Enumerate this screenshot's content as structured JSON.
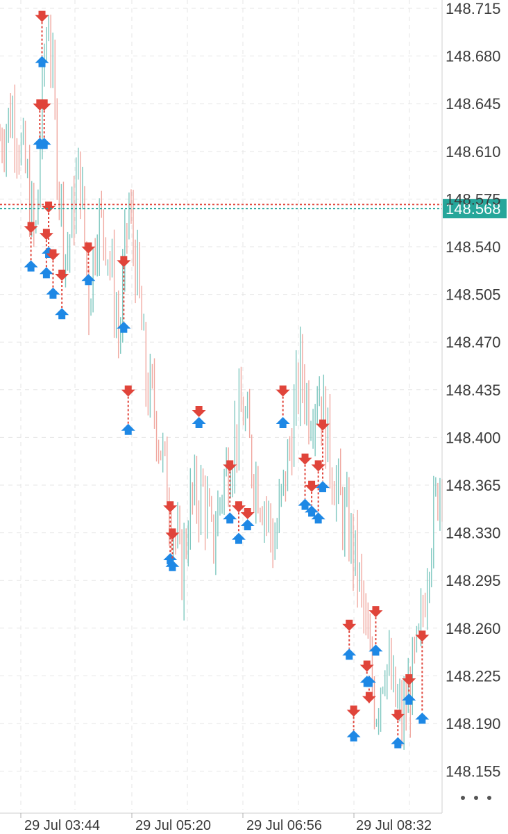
{
  "chart_data": {
    "type": "candlestick",
    "instrument_price_current": "148.568",
    "price_axis": {
      "ticks": [
        "148.715",
        "148.680",
        "148.645",
        "148.610",
        "148.575",
        "148.540",
        "148.505",
        "148.470",
        "148.435",
        "148.400",
        "148.365",
        "148.330",
        "148.295",
        "148.260",
        "148.225",
        "148.190",
        "148.155"
      ],
      "range": [
        148.14,
        148.725
      ]
    },
    "time_axis": {
      "ticks": [
        "29 Jul 03:44",
        "29 Jul 05:20",
        "29 Jul 06:56",
        "29 Jul 08:32"
      ]
    },
    "current_price": {
      "value": 148.568,
      "label": "148.568",
      "color": "#26a69a"
    },
    "previous_price_line": {
      "value": 148.571,
      "color": "#e0443a"
    },
    "colors": {
      "up": "#7fc8c0",
      "down": "#f0a8a0",
      "buy": "#1e88e5",
      "sell": "#e0443a",
      "grid": "#e6e6e6"
    },
    "price_path": [
      [
        0,
        148.62
      ],
      [
        0.03,
        148.64
      ],
      [
        0.06,
        148.59
      ],
      [
        0.08,
        148.54
      ],
      [
        0.1,
        148.68
      ],
      [
        0.11,
        148.71
      ],
      [
        0.13,
        148.6
      ],
      [
        0.15,
        148.53
      ],
      [
        0.18,
        148.6
      ],
      [
        0.2,
        148.5
      ],
      [
        0.22,
        148.56
      ],
      [
        0.24,
        148.55
      ],
      [
        0.26,
        148.5
      ],
      [
        0.27,
        148.47
      ],
      [
        0.29,
        148.57
      ],
      [
        0.31,
        148.52
      ],
      [
        0.33,
        148.44
      ],
      [
        0.35,
        148.42
      ],
      [
        0.38,
        148.36
      ],
      [
        0.41,
        148.3
      ],
      [
        0.43,
        148.35
      ],
      [
        0.46,
        148.36
      ],
      [
        0.48,
        148.32
      ],
      [
        0.5,
        148.36
      ],
      [
        0.53,
        148.4
      ],
      [
        0.55,
        148.42
      ],
      [
        0.57,
        148.38
      ],
      [
        0.6,
        148.35
      ],
      [
        0.62,
        148.32
      ],
      [
        0.65,
        148.38
      ],
      [
        0.68,
        148.45
      ],
      [
        0.7,
        148.42
      ],
      [
        0.72,
        148.44
      ],
      [
        0.75,
        148.38
      ],
      [
        0.77,
        148.35
      ],
      [
        0.79,
        148.33
      ],
      [
        0.81,
        148.3
      ],
      [
        0.83,
        148.25
      ],
      [
        0.85,
        148.2
      ],
      [
        0.87,
        148.24
      ],
      [
        0.89,
        148.21
      ],
      [
        0.91,
        148.19
      ],
      [
        0.93,
        148.22
      ],
      [
        0.95,
        148.25
      ],
      [
        0.97,
        148.32
      ],
      [
        1.0,
        148.38
      ]
    ],
    "trades": [
      {
        "x": 0.09,
        "buy": 148.62,
        "sell": 148.64
      },
      {
        "x": 0.095,
        "buy": 148.68,
        "sell": 148.705
      },
      {
        "x": 0.1,
        "buy": 148.62,
        "sell": 148.64
      },
      {
        "x": 0.07,
        "buy": 148.53,
        "sell": 148.55
      },
      {
        "x": 0.105,
        "buy": 148.525,
        "sell": 148.545
      },
      {
        "x": 0.11,
        "buy": 148.54,
        "sell": 148.565
      },
      {
        "x": 0.12,
        "buy": 148.51,
        "sell": 148.53
      },
      {
        "x": 0.14,
        "buy": 148.495,
        "sell": 148.515
      },
      {
        "x": 0.2,
        "buy": 148.52,
        "sell": 148.535
      },
      {
        "x": 0.28,
        "buy": 148.485,
        "sell": 148.525
      },
      {
        "x": 0.29,
        "buy": 148.41,
        "sell": 148.43
      },
      {
        "x": 0.385,
        "buy": 148.315,
        "sell": 148.345
      },
      {
        "x": 0.39,
        "buy": 148.31,
        "sell": 148.325
      },
      {
        "x": 0.45,
        "buy": 148.415,
        "sell": 148.415
      },
      {
        "x": 0.52,
        "buy": 148.345,
        "sell": 148.375
      },
      {
        "x": 0.54,
        "buy": 148.33,
        "sell": 148.345
      },
      {
        "x": 0.56,
        "buy": 148.34,
        "sell": 148.34
      },
      {
        "x": 0.64,
        "buy": 148.415,
        "sell": 148.43
      },
      {
        "x": 0.69,
        "buy": 148.355,
        "sell": 148.38
      },
      {
        "x": 0.705,
        "buy": 148.35,
        "sell": 148.36
      },
      {
        "x": 0.72,
        "buy": 148.345,
        "sell": 148.375
      },
      {
        "x": 0.73,
        "buy": 148.368,
        "sell": 148.405
      },
      {
        "x": 0.79,
        "buy": 148.245,
        "sell": 148.258
      },
      {
        "x": 0.8,
        "buy": 148.185,
        "sell": 148.195
      },
      {
        "x": 0.83,
        "buy": 148.225,
        "sell": 148.228
      },
      {
        "x": 0.835,
        "buy": 148.225,
        "sell": 148.205
      },
      {
        "x": 0.85,
        "buy": 148.248,
        "sell": 148.268
      },
      {
        "x": 0.9,
        "buy": 148.18,
        "sell": 148.192
      },
      {
        "x": 0.925,
        "buy": 148.212,
        "sell": 148.218
      },
      {
        "x": 0.955,
        "buy": 148.198,
        "sell": 148.25
      }
    ]
  },
  "ui": {
    "more_menu": "more-options"
  }
}
